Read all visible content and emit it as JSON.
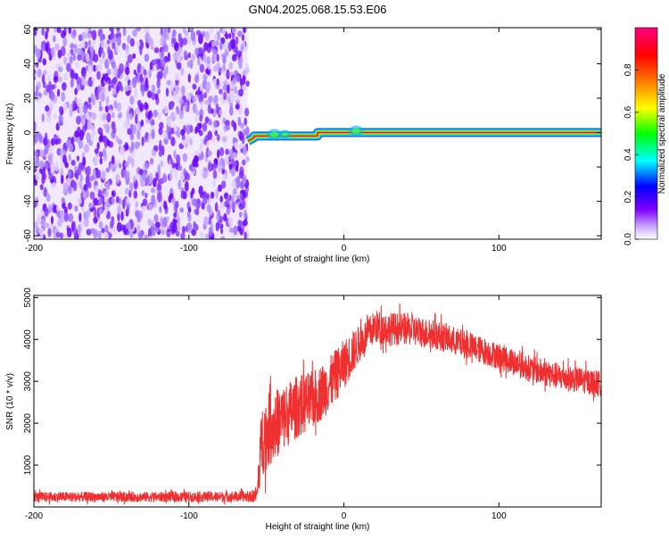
{
  "title": "GN04.2025.068.15.53.E06",
  "chart_data": [
    {
      "type": "heatmap",
      "xlabel": "Height of straight line (km)",
      "ylabel": "Frequency (Hz)",
      "xlim": [
        -200,
        166
      ],
      "ylim": [
        -62,
        61
      ],
      "xticks": [
        -200,
        -100,
        0,
        100
      ],
      "yticks": [
        60,
        40,
        20,
        0,
        -20,
        -40,
        -60
      ],
      "ytick_labels": [
        "60",
        "40",
        "20",
        "0",
        "-20",
        "-40",
        "-60"
      ],
      "noise_region_x": [
        -200,
        -62
      ],
      "carrier_segments": [
        {
          "x": [
            -62,
            -58
          ],
          "freq": [
            -5,
            -3
          ]
        },
        {
          "x": [
            -58,
            -30
          ],
          "freq": [
            -2,
            -2
          ]
        },
        {
          "x": [
            -30,
            -17
          ],
          "freq": [
            -2,
            -2
          ]
        },
        {
          "x": [
            -17,
            166
          ],
          "freq": [
            0,
            0
          ]
        }
      ],
      "colorbar": {
        "label": "Normalized spectral amplitude",
        "range": [
          0,
          1
        ],
        "ticks": [
          0.0,
          0.2,
          0.4,
          0.6,
          0.8
        ],
        "tick_labels": [
          "0.0",
          "0.2",
          "0.4",
          "0.6",
          "0.8"
        ],
        "colors": [
          "#ffffff",
          "#8000ff",
          "#0000ff",
          "#00ffff",
          "#00ff00",
          "#ffff00",
          "#ff8000",
          "#ff0000",
          "#ff0080"
        ]
      }
    },
    {
      "type": "line",
      "xlabel": "Height of straight line (km)",
      "ylabel": "SNR (10 * v/v)",
      "xlim": [
        -200,
        166
      ],
      "ylim": [
        0,
        5050
      ],
      "xticks": [
        -200,
        -100,
        0,
        100
      ],
      "yticks": [
        1000,
        2000,
        3000,
        4000,
        5000
      ],
      "color": "#f03030",
      "envelope": {
        "x": [
          -200,
          -120,
          -60,
          -56,
          -53,
          -50,
          -40,
          -30,
          -20,
          -10,
          0,
          10,
          20,
          30,
          40,
          60,
          80,
          100,
          120,
          140,
          166
        ],
        "mean": [
          240,
          240,
          250,
          300,
          1600,
          1800,
          2100,
          2400,
          2550,
          2900,
          3400,
          3900,
          4300,
          4250,
          4250,
          4100,
          3850,
          3600,
          3300,
          3100,
          2950
        ],
        "spread": [
          120,
          120,
          130,
          200,
          900,
          900,
          800,
          750,
          700,
          650,
          600,
          450,
          400,
          400,
          380,
          350,
          330,
          320,
          320,
          320,
          300
        ]
      }
    }
  ]
}
